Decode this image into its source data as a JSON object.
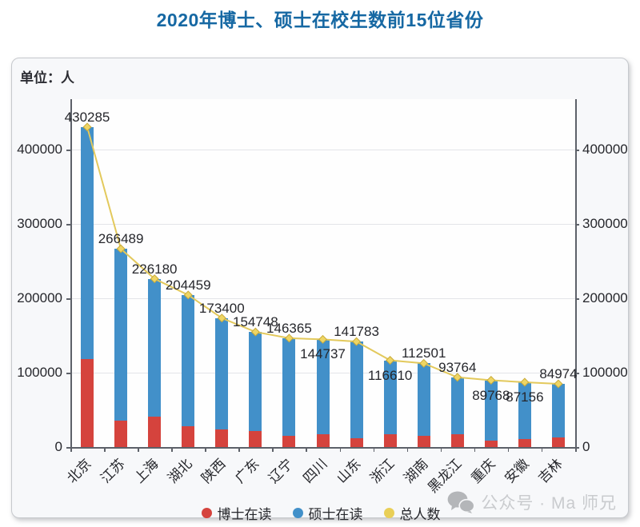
{
  "page": {
    "title": "2020年博士、硕士在校生数前15位省份"
  },
  "panel": {
    "unit_label": "单位：人"
  },
  "chart_data": {
    "type": "bar",
    "stacked": true,
    "title": "2020年博士、硕士在校生数前15位省份",
    "unit": "人",
    "categories": [
      "北京",
      "江苏",
      "上海",
      "湖北",
      "陕西",
      "广东",
      "辽宁",
      "四川",
      "山东",
      "浙江",
      "湖南",
      "黑龙江",
      "重庆",
      "安徽",
      "吉林"
    ],
    "series": [
      {
        "name": "博士在读",
        "type": "bar",
        "color": "#d5433d",
        "values": [
          118000,
          36000,
          41000,
          28000,
          24000,
          22000,
          15000,
          17000,
          12000,
          17000,
          15000,
          17000,
          9000,
          11000,
          13000
        ]
      },
      {
        "name": "硕士在读",
        "type": "bar",
        "color": "#4290c9",
        "values": [
          312285,
          230489,
          185180,
          176459,
          149400,
          132748,
          131365,
          127737,
          129783,
          99610,
          97501,
          76764,
          80768,
          76156,
          71974
        ]
      },
      {
        "name": "总人数",
        "type": "line",
        "color": "#e3c95c",
        "values": [
          430285,
          266489,
          226180,
          204459,
          173400,
          154748,
          146365,
          144737,
          141783,
          116610,
          112501,
          93764,
          89768,
          87156,
          84974
        ]
      }
    ],
    "total_labels": [
      "430285",
      "266489",
      "226180",
      "204459",
      "173400",
      "154748",
      "146365",
      "144737",
      "141783",
      "116610",
      "112501",
      "93764",
      "89768",
      "87156",
      "84974"
    ],
    "total_label_position": [
      "above",
      "above",
      "above",
      "above",
      "above",
      "above",
      "above",
      "below",
      "above",
      "below",
      "above",
      "above",
      "below",
      "below",
      "above"
    ],
    "y_ticks": [
      "0",
      "100000",
      "200000",
      "300000",
      "400000"
    ],
    "y_tick_values": [
      0,
      100000,
      200000,
      300000,
      400000
    ],
    "ylim": [
      0,
      467000
    ],
    "grid": true,
    "legend_position": "bottom",
    "marker_fill": "#eed564",
    "marker_stroke": "#c9ab3a"
  },
  "legend": {
    "items": [
      {
        "label": "博士在读",
        "color": "#d5433d"
      },
      {
        "label": "硕士在读",
        "color": "#4290c9"
      },
      {
        "label": "总人数",
        "color": "#e9cf57"
      }
    ]
  },
  "watermark": {
    "icon": "wechat-icon",
    "text": "公众号 · Ma 师兄"
  }
}
